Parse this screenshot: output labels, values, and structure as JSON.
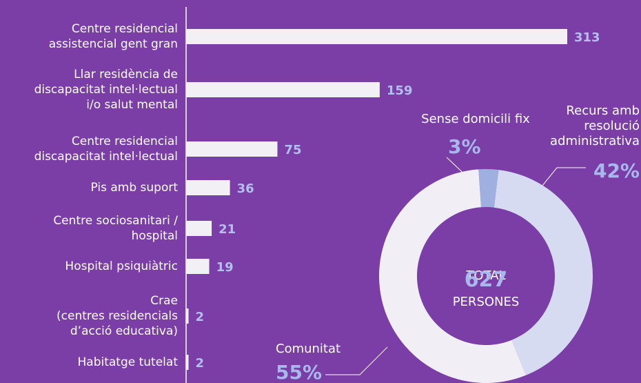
{
  "chart_data": [
    {
      "type": "bar",
      "categories": [
        "Centre residencial\nassistencial gent gran",
        "Llar residència de\ndiscapacitat intel·lectual\ni/o salut mental",
        "Centre residencial\ndiscapacitat  intel·lectual",
        "Pis amb suport",
        "Centre sociosanitari /\nhospital",
        "Hospital psiquiàtric",
        "Crae\n(centres residencials\nd’acció educativa)",
        "Habitatge tutelat"
      ],
      "values": [
        313,
        159,
        75,
        36,
        21,
        19,
        2,
        2
      ],
      "color": "#f2eff5",
      "label_color": "#b3bfee"
    },
    {
      "type": "donut",
      "categories": [
        "Sense domicili fix",
        "Recurs amb\nresolució\nadministrativa",
        "Comunitat"
      ],
      "values": [
        3,
        42,
        55
      ],
      "value_labels": [
        "3%",
        "42%",
        "55%"
      ],
      "colors": [
        "#9eafe0",
        "#d7dbf2",
        "#f1eef5"
      ],
      "total_label": "TOTAL",
      "total": 627,
      "total_unit": "PERSONES"
    }
  ]
}
